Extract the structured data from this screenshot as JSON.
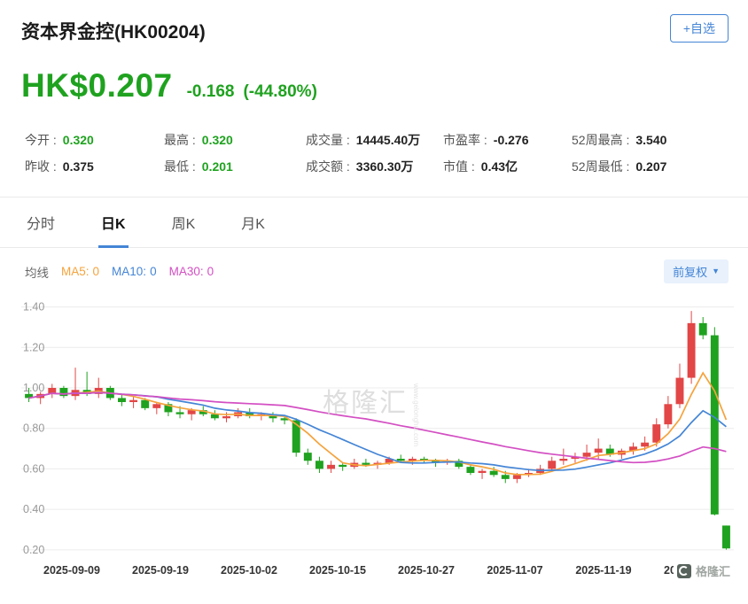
{
  "colors": {
    "green": "#1FA21F",
    "red": "#E24646",
    "ma5_orange": "#F5A33D",
    "ma10_blue": "#4485D6",
    "ma30_magenta": "#D34FC3",
    "accent_blue": "#4485D6",
    "grid": "#ECECEC",
    "label_gray": "#999999",
    "axis_text": "#333333"
  },
  "header": {
    "title": "资本界金控(HK00204)",
    "watchlist_button": "+自选"
  },
  "quote": {
    "price": "HK$0.207",
    "change": "-0.168",
    "change_pct": "(-44.80%)"
  },
  "stats": {
    "row1": [
      {
        "label": "今开 :",
        "value": "0.320"
      },
      {
        "label": "最高 :",
        "value": "0.320"
      },
      {
        "label": "成交量 :",
        "value": "14445.40万"
      },
      {
        "label": "市盈率 :",
        "value": "-0.276"
      },
      {
        "label": "52周最高 :",
        "value": "3.540"
      }
    ],
    "row2": [
      {
        "label": "昨收 :",
        "value": "0.375"
      },
      {
        "label": "最低 :",
        "value": "0.201"
      },
      {
        "label": "成交额 :",
        "value": "3360.30万"
      },
      {
        "label": "市值 :",
        "value": "0.43亿"
      },
      {
        "label": "52周最低 :",
        "value": "0.207"
      }
    ]
  },
  "tabs": [
    {
      "label": "分时"
    },
    {
      "label": "日K"
    },
    {
      "label": "周K"
    },
    {
      "label": "月K"
    }
  ],
  "indicators": {
    "ma_label": "均线",
    "ma5_label": "MA5:",
    "ma5_value": "0",
    "ma10_label": "MA10:",
    "ma10_value": "0",
    "ma30_label": "MA30:",
    "ma30_value": "0",
    "adjust_button": "前复权",
    "adjust_arrow": "▼"
  },
  "watermark": {
    "center_text": "格隆汇",
    "center_sub": "www.gelonghui.com",
    "corner_text": "格隆汇"
  },
  "chart_data": {
    "type": "candlestick",
    "title": "资本界金控(HK00204) 日K 前复权",
    "y_ticks": [
      "1.40",
      "1.20",
      "1.00",
      "0.80",
      "0.60",
      "0.40",
      "0.20"
    ],
    "ylim": [
      0.16,
      1.42
    ],
    "x_labels": [
      "2025-09-09",
      "2025-09-19",
      "2025-10-02",
      "2025-10-15",
      "2025-10-27",
      "2025-11-07",
      "2025-11-19",
      "2025-12-01"
    ],
    "color_rule": "close >= open is up (red), close < open is down (green)",
    "moving_averages": [
      {
        "name": "MA5",
        "period": 5,
        "color_key": "ma5_orange"
      },
      {
        "name": "MA10",
        "period": 10,
        "color_key": "ma10_blue"
      },
      {
        "name": "MA30",
        "period": 30,
        "color_key": "ma30_magenta"
      }
    ],
    "ohlc": [
      [
        0.97,
        1.0,
        0.93,
        0.95
      ],
      [
        0.95,
        0.98,
        0.92,
        0.97
      ],
      [
        0.97,
        1.02,
        0.95,
        1.0
      ],
      [
        1.0,
        1.01,
        0.95,
        0.96
      ],
      [
        0.96,
        1.1,
        0.94,
        0.99
      ],
      [
        0.99,
        1.08,
        0.96,
        0.97
      ],
      [
        0.97,
        1.05,
        0.95,
        1.0
      ],
      [
        1.0,
        1.01,
        0.94,
        0.95
      ],
      [
        0.95,
        0.97,
        0.91,
        0.93
      ],
      [
        0.93,
        0.96,
        0.9,
        0.94
      ],
      [
        0.94,
        0.95,
        0.89,
        0.9
      ],
      [
        0.9,
        0.93,
        0.87,
        0.92
      ],
      [
        0.92,
        0.93,
        0.86,
        0.88
      ],
      [
        0.88,
        0.91,
        0.85,
        0.87
      ],
      [
        0.87,
        0.9,
        0.84,
        0.89
      ],
      [
        0.89,
        0.91,
        0.86,
        0.87
      ],
      [
        0.87,
        0.89,
        0.84,
        0.85
      ],
      [
        0.85,
        0.88,
        0.83,
        0.86
      ],
      [
        0.86,
        0.9,
        0.85,
        0.88
      ],
      [
        0.88,
        0.9,
        0.85,
        0.86
      ],
      [
        0.86,
        0.88,
        0.84,
        0.87
      ],
      [
        0.87,
        0.88,
        0.83,
        0.85
      ],
      [
        0.85,
        0.86,
        0.82,
        0.84
      ],
      [
        0.84,
        0.85,
        0.66,
        0.68
      ],
      [
        0.68,
        0.7,
        0.62,
        0.64
      ],
      [
        0.64,
        0.66,
        0.58,
        0.6
      ],
      [
        0.6,
        0.64,
        0.58,
        0.62
      ],
      [
        0.62,
        0.63,
        0.59,
        0.61
      ],
      [
        0.61,
        0.65,
        0.6,
        0.63
      ],
      [
        0.63,
        0.65,
        0.61,
        0.62
      ],
      [
        0.62,
        0.64,
        0.6,
        0.63
      ],
      [
        0.63,
        0.66,
        0.62,
        0.65
      ],
      [
        0.65,
        0.67,
        0.63,
        0.64
      ],
      [
        0.64,
        0.66,
        0.62,
        0.65
      ],
      [
        0.65,
        0.66,
        0.63,
        0.64
      ],
      [
        0.64,
        0.65,
        0.61,
        0.63
      ],
      [
        0.63,
        0.65,
        0.62,
        0.64
      ],
      [
        0.64,
        0.65,
        0.6,
        0.61
      ],
      [
        0.61,
        0.62,
        0.57,
        0.58
      ],
      [
        0.58,
        0.6,
        0.55,
        0.59
      ],
      [
        0.59,
        0.61,
        0.56,
        0.57
      ],
      [
        0.57,
        0.59,
        0.53,
        0.55
      ],
      [
        0.55,
        0.58,
        0.53,
        0.57
      ],
      [
        0.57,
        0.6,
        0.56,
        0.58
      ],
      [
        0.58,
        0.62,
        0.57,
        0.6
      ],
      [
        0.6,
        0.66,
        0.59,
        0.64
      ],
      [
        0.64,
        0.7,
        0.62,
        0.65
      ],
      [
        0.65,
        0.68,
        0.63,
        0.66
      ],
      [
        0.66,
        0.72,
        0.64,
        0.68
      ],
      [
        0.68,
        0.75,
        0.65,
        0.7
      ],
      [
        0.7,
        0.72,
        0.66,
        0.67
      ],
      [
        0.67,
        0.7,
        0.65,
        0.69
      ],
      [
        0.69,
        0.73,
        0.67,
        0.71
      ],
      [
        0.71,
        0.76,
        0.69,
        0.73
      ],
      [
        0.73,
        0.85,
        0.71,
        0.82
      ],
      [
        0.82,
        0.96,
        0.8,
        0.92
      ],
      [
        0.92,
        1.12,
        0.9,
        1.05
      ],
      [
        1.05,
        1.38,
        1.02,
        1.32
      ],
      [
        1.32,
        1.35,
        1.24,
        1.26
      ],
      [
        1.26,
        1.3,
        0.37,
        0.375
      ],
      [
        0.32,
        0.32,
        0.201,
        0.207
      ]
    ]
  }
}
